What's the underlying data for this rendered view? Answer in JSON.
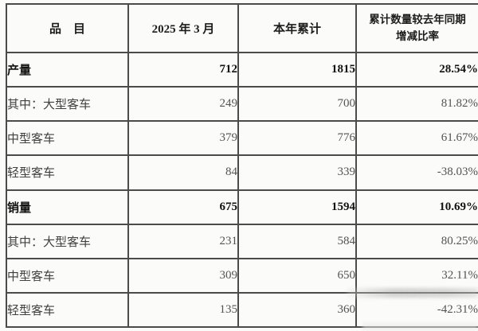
{
  "table": {
    "columns": {
      "item": "品　目",
      "month": "2025 年 3 月",
      "ytd": "本年累计",
      "rate": "累计数量较去年同期\n增减比率"
    },
    "rows": [
      {
        "item": "产量",
        "month": "712",
        "ytd": "1815",
        "rate": "28.54%",
        "bold": true,
        "indent": false
      },
      {
        "item": "其中：大型客车",
        "month": "249",
        "ytd": "700",
        "rate": "81.82%",
        "bold": false,
        "indent": false
      },
      {
        "item": "中型客车",
        "month": "379",
        "ytd": "776",
        "rate": "61.67%",
        "bold": false,
        "indent": true
      },
      {
        "item": "轻型客车",
        "month": "84",
        "ytd": "339",
        "rate": "-38.03%",
        "bold": false,
        "indent": true
      },
      {
        "item": "销量",
        "month": "675",
        "ytd": "1594",
        "rate": "10.69%",
        "bold": true,
        "indent": false
      },
      {
        "item": "其中：大型客车",
        "month": "231",
        "ytd": "584",
        "rate": "80.25%",
        "bold": false,
        "indent": false
      },
      {
        "item": "中型客车",
        "month": "309",
        "ytd": "650",
        "rate": "32.11%",
        "bold": false,
        "indent": true
      },
      {
        "item": "轻型客车",
        "month": "135",
        "ytd": "360",
        "rate": "-42.31%",
        "bold": false,
        "indent": true
      }
    ],
    "colors": {
      "grid": "#4b4b4b",
      "bold_text": "#121212",
      "regular_text": "#535353",
      "background": "#fbfbfa"
    }
  }
}
